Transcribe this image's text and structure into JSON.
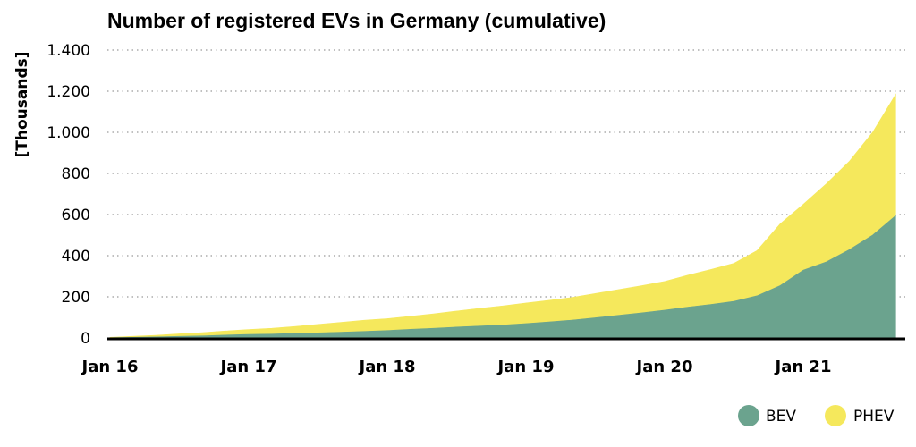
{
  "chart_data": {
    "type": "area",
    "stacked": true,
    "title": "Number of registered EVs in Germany (cumulative)",
    "ylabel": "[Thousands]",
    "xlabel": "",
    "ylim": [
      0,
      1400
    ],
    "yticks": [
      0,
      200,
      400,
      600,
      800,
      1000,
      1200,
      1400
    ],
    "ytick_labels": [
      "0",
      "200",
      "400",
      "600",
      "800",
      "1.000",
      "1.200",
      "1.400"
    ],
    "xticks": [
      "Jan 16",
      "Jan 17",
      "Jan 18",
      "Jan 19",
      "Jan 20",
      "Jan 21"
    ],
    "grid": "horizontal dotted",
    "legend_position": "bottom-right",
    "x_start": "Jan 16",
    "x_end": "Sep 21",
    "colors": {
      "BEV": "#6ba38e",
      "PHEV": "#f5e85c"
    },
    "x": [
      "Jan 16",
      "Mar 16",
      "May 16",
      "Jul 16",
      "Sep 16",
      "Nov 16",
      "Jan 17",
      "Mar 17",
      "May 17",
      "Jul 17",
      "Sep 17",
      "Nov 17",
      "Jan 18",
      "Mar 18",
      "May 18",
      "Jul 18",
      "Sep 18",
      "Nov 18",
      "Jan 19",
      "Mar 19",
      "May 19",
      "Jul 19",
      "Sep 19",
      "Nov 19",
      "Jan 20",
      "Mar 20",
      "May 20",
      "Jul 20",
      "Sep 20",
      "Nov 20",
      "Jan 21",
      "Mar 21",
      "May 21",
      "Jul 21",
      "Sep 21"
    ],
    "series": [
      {
        "name": "BEV",
        "values": [
          1,
          3,
          5,
          8,
          10,
          14,
          17,
          19,
          22,
          25,
          28,
          32,
          36,
          42,
          47,
          53,
          58,
          63,
          70,
          78,
          87,
          98,
          110,
          122,
          135,
          150,
          163,
          178,
          205,
          255,
          330,
          370,
          430,
          500,
          595
        ]
      },
      {
        "name": "PHEV",
        "values": [
          2,
          5,
          8,
          12,
          16,
          20,
          24,
          28,
          34,
          41,
          48,
          54,
          58,
          63,
          70,
          78,
          86,
          93,
          100,
          105,
          110,
          118,
          125,
          132,
          140,
          155,
          170,
          185,
          220,
          300,
          320,
          380,
          430,
          500,
          590
        ]
      }
    ]
  },
  "legend": [
    {
      "label": "BEV",
      "color": "#6ba38e"
    },
    {
      "label": "PHEV",
      "color": "#f5e85c"
    }
  ]
}
